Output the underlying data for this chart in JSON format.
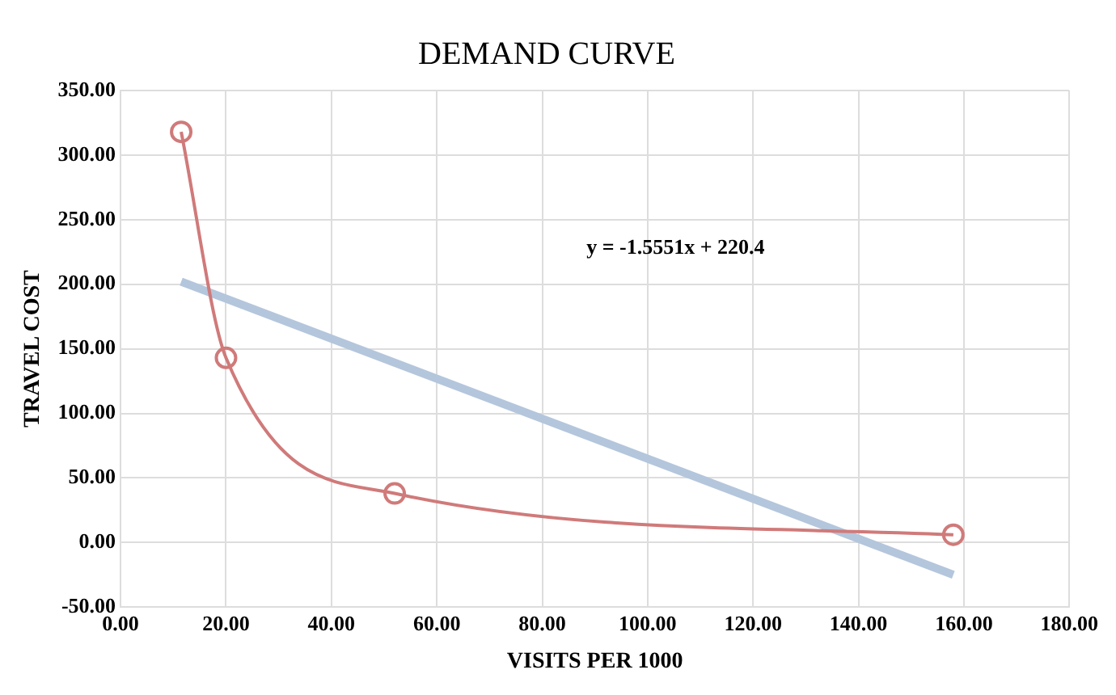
{
  "chart_data": {
    "type": "line",
    "title": "DEMAND CURVE",
    "xlabel": "VISITS PER 1000",
    "ylabel": "TRAVEL COST",
    "series": [
      {
        "color": "#d07a7a",
        "x": [
          11.5,
          20,
          52,
          158
        ],
        "values": [
          318,
          143,
          38,
          6
        ]
      },
      {
        "color": "#b4c6dc",
        "x": [
          11.5,
          158
        ],
        "values": [
          202,
          -25
        ],
        "marker": "none"
      }
    ],
    "marker": "circle",
    "grid": true,
    "xlim": [
      0,
      180
    ],
    "xticks": [
      {
        "value": 0,
        "label": "0.00"
      },
      {
        "value": 20,
        "label": "20.00"
      },
      {
        "value": 40,
        "label": "40.00"
      },
      {
        "value": 60,
        "label": "60.00"
      },
      {
        "value": 80,
        "label": "80.00"
      },
      {
        "value": 100,
        "label": "100.00"
      },
      {
        "value": 120,
        "label": "120.00"
      },
      {
        "value": 140,
        "label": "140.00"
      },
      {
        "value": 160,
        "label": "160.00"
      },
      {
        "value": 180,
        "label": "180.00"
      }
    ],
    "ylim": [
      -50,
      350
    ],
    "yticks": [
      {
        "value": -50,
        "label": "-50.00"
      },
      {
        "value": 0,
        "label": "0.00"
      },
      {
        "value": 50,
        "label": "50.00"
      },
      {
        "value": 100,
        "label": "100.00"
      },
      {
        "value": 150,
        "label": "150.00"
      },
      {
        "value": 200,
        "label": "200.00"
      },
      {
        "value": 250,
        "label": "250.00"
      },
      {
        "value": 300,
        "label": "300.00"
      },
      {
        "value": 350,
        "label": "350.00"
      }
    ],
    "annotations": [
      "y = -1.5551x + 220.4"
    ]
  }
}
